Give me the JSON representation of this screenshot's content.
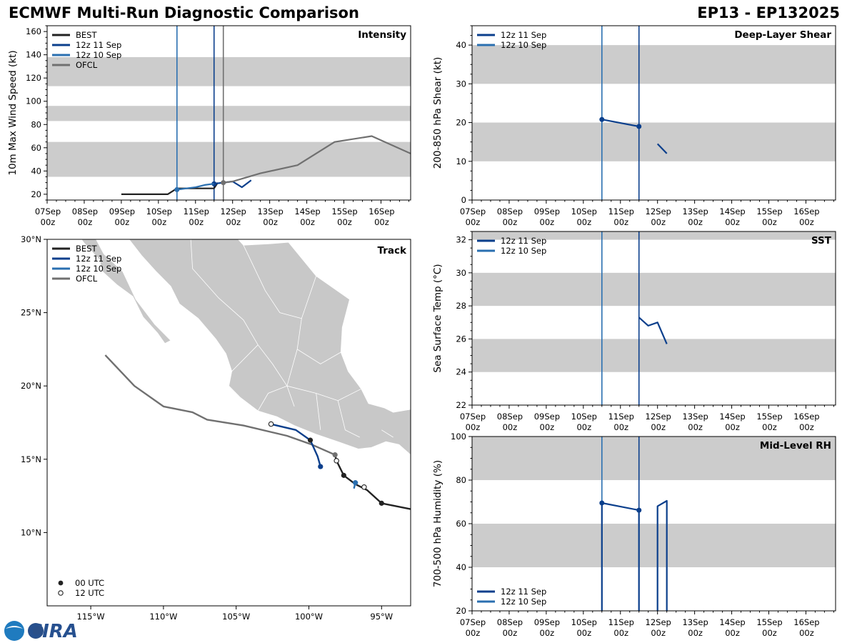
{
  "header": {
    "title": "ECMWF Multi-Run Diagnostic Comparison",
    "storm": "EP13 - EP132025"
  },
  "logo": {
    "text": "CIRA"
  },
  "time_axis": {
    "tick_labels": [
      "07Sep\n00z",
      "08Sep\n00z",
      "09Sep\n00z",
      "10Sep\n00z",
      "11Sep\n00z",
      "12Sep\n00z",
      "13Sep\n00z",
      "14Sep\n00z",
      "15Sep\n00z",
      "16Sep\n00z"
    ]
  },
  "colors": {
    "best": "#222222",
    "run11": "#0b3f8c",
    "run10": "#2a6fb0",
    "ofcl": "#707070",
    "band": "#cccccc",
    "land": "#c8c8c8"
  },
  "chart_data": [
    {
      "id": "intensity",
      "type": "line",
      "title": "Intensity",
      "ylabel": "10m Max Wind Speed (kt)",
      "xlim": [
        0,
        9.8
      ],
      "ylim": [
        15,
        165
      ],
      "yticks": [
        20,
        40,
        60,
        80,
        100,
        120,
        140,
        160
      ],
      "bands": [
        [
          35,
          65
        ],
        [
          83,
          96
        ],
        [
          113,
          138
        ]
      ],
      "legend": [
        "BEST",
        "12z 11 Sep",
        "12z 10 Sep",
        "OFCL"
      ],
      "vlines": [
        {
          "x": 3.5,
          "series": "12z 10 Sep"
        },
        {
          "x": 4.5,
          "series": "12z 11 Sep"
        },
        {
          "x": 4.75,
          "series": "OFCL"
        }
      ],
      "series": [
        {
          "name": "BEST",
          "x": [
            2.0,
            2.5,
            3.25,
            3.5,
            3.75,
            4.0,
            4.25,
            4.5,
            4.6
          ],
          "y": [
            20,
            20,
            20,
            25,
            25,
            25,
            25,
            25,
            30
          ]
        },
        {
          "name": "12z 11 Sep",
          "x": [
            4.5,
            4.75,
            5.0,
            5.25,
            5.5
          ],
          "y": [
            29,
            30,
            31,
            26,
            32
          ],
          "marker_start": true
        },
        {
          "name": "12z 10 Sep",
          "x": [
            3.5,
            3.75,
            4.0,
            4.25,
            4.5
          ],
          "y": [
            24,
            25,
            26,
            28,
            29
          ],
          "marker_start": true
        },
        {
          "name": "OFCL",
          "x": [
            4.75,
            5.0,
            5.75,
            6.75,
            7.75,
            8.75,
            9.8
          ],
          "y": [
            30,
            31,
            38,
            45,
            65,
            70,
            55
          ],
          "marker_start": true
        }
      ]
    },
    {
      "id": "shear",
      "type": "line",
      "title": "Deep-Layer Shear",
      "ylabel": "200-850 hPa Shear (kt)",
      "xlim": [
        0,
        9.8
      ],
      "ylim": [
        0,
        45
      ],
      "yticks": [
        0,
        10,
        20,
        30,
        40
      ],
      "bands": [
        [
          10,
          20
        ],
        [
          30,
          40
        ]
      ],
      "legend": [
        "12z 11 Sep",
        "12z 10 Sep"
      ],
      "vlines": [
        {
          "x": 3.5,
          "series": "12z 10 Sep"
        },
        {
          "x": 4.5,
          "series": "12z 11 Sep"
        }
      ],
      "series": [
        {
          "name": "12z 11 Sep",
          "x": [
            5.0,
            5.25
          ],
          "y": [
            14.5,
            12.0
          ]
        },
        {
          "name": "12z 11 Sep",
          "x": [
            3.5,
            4.5
          ],
          "y": [
            20.8,
            19.0
          ],
          "marker_start": true,
          "marker_end": true
        }
      ]
    },
    {
      "id": "sst",
      "type": "line",
      "title": "SST",
      "ylabel": "Sea Surface Temp (°C)",
      "xlim": [
        0,
        9.8
      ],
      "ylim": [
        22,
        32.5
      ],
      "yticks": [
        22,
        24,
        26,
        28,
        30,
        32
      ],
      "bands": [
        [
          24,
          26
        ],
        [
          28,
          30
        ],
        [
          32,
          34
        ]
      ],
      "legend": [
        "12z 11 Sep",
        "12z 10 Sep"
      ],
      "vlines": [
        {
          "x": 3.5,
          "series": "12z 10 Sep"
        },
        {
          "x": 4.5,
          "series": "12z 11 Sep"
        }
      ],
      "series": [
        {
          "name": "12z 11 Sep",
          "x": [
            4.5,
            4.75,
            5.0,
            5.25
          ],
          "y": [
            27.3,
            26.8,
            27.0,
            25.7
          ]
        }
      ]
    },
    {
      "id": "rh",
      "type": "line",
      "title": "Mid-Level RH",
      "ylabel": "700-500 hPa Humidity (%)",
      "xlim": [
        0,
        9.8
      ],
      "ylim": [
        20,
        100
      ],
      "yticks": [
        20,
        40,
        60,
        80,
        100
      ],
      "bands": [
        [
          40,
          60
        ],
        [
          80,
          100
        ]
      ],
      "legend": [
        "12z 11 Sep",
        "12z 10 Sep"
      ],
      "vlines": [
        {
          "x": 3.5,
          "series": "12z 10 Sep"
        },
        {
          "x": 4.5,
          "series": "12z 11 Sep"
        }
      ],
      "series": [
        {
          "name": "12z 11 Sep",
          "x": [
            3.5,
            3.5,
            4.5,
            4.5
          ],
          "y": [
            20,
            69.5,
            66.2,
            20
          ],
          "marker_points": [
            1,
            2
          ]
        },
        {
          "name": "12z 11 Sep",
          "x": [
            5.0,
            5.0,
            5.25,
            5.25
          ],
          "y": [
            20,
            68,
            70.5,
            20
          ]
        }
      ]
    },
    {
      "id": "track",
      "type": "scatter",
      "title": "Track",
      "xlim": [
        -118,
        -93
      ],
      "ylim": [
        5,
        30
      ],
      "xtick_labels": [
        "115°W",
        "110°W",
        "105°W",
        "100°W",
        "95°W"
      ],
      "xtick_values": [
        -115,
        -110,
        -105,
        -100,
        -95
      ],
      "ytick_labels": [
        "10°N",
        "15°N",
        "20°N",
        "25°N",
        "30°N"
      ],
      "ytick_values": [
        10,
        15,
        20,
        25,
        30
      ],
      "legend": [
        "BEST",
        "12z 11 Sep",
        "12z 10 Sep",
        "OFCL"
      ],
      "marker_legend": [
        "00 UTC",
        "12 UTC"
      ],
      "series": [
        {
          "name": "BEST",
          "lon": [
            -93.0,
            -95.0,
            -96.0,
            -96.8,
            -97.6,
            -98.1,
            -98.2
          ],
          "lat": [
            11.6,
            12.0,
            12.9,
            13.3,
            13.9,
            14.9,
            15.3
          ]
        },
        {
          "name": "OFCL",
          "lon": [
            -98.2,
            -99.8,
            -101.5,
            -104.5,
            -107.0,
            -108.0,
            -110.0,
            -112.0,
            -114.0
          ],
          "lat": [
            15.3,
            16.0,
            16.6,
            17.3,
            17.7,
            18.2,
            18.6,
            20.0,
            22.1
          ]
        },
        {
          "name": "12z 11 Sep",
          "lon": [
            -99.2,
            -99.4,
            -99.9,
            -100.9,
            -102.6
          ],
          "lat": [
            14.5,
            15.2,
            16.3,
            17.0,
            17.4
          ]
        },
        {
          "name": "12z 10 Sep",
          "lon": [
            -96.8,
            -96.85,
            -96.9
          ],
          "lat": [
            13.4,
            13.2,
            13.0
          ]
        }
      ],
      "points_00utc": [
        {
          "lon": -95.0,
          "lat": 12.0,
          "series": "BEST"
        },
        {
          "lon": -97.6,
          "lat": 13.9,
          "series": "BEST"
        },
        {
          "lon": -99.9,
          "lat": 16.3,
          "series": "BEST"
        },
        {
          "lon": -99.2,
          "lat": 14.5,
          "series": "12z 11 Sep"
        },
        {
          "lon": -96.8,
          "lat": 13.4,
          "series": "12z 10 Sep"
        },
        {
          "lon": -98.2,
          "lat": 15.3,
          "series": "OFCL"
        }
      ],
      "points_12utc": [
        {
          "lon": -96.2,
          "lat": 13.1
        },
        {
          "lon": -98.1,
          "lat": 14.9
        },
        {
          "lon": -102.6,
          "lat": 17.4
        }
      ]
    }
  ]
}
